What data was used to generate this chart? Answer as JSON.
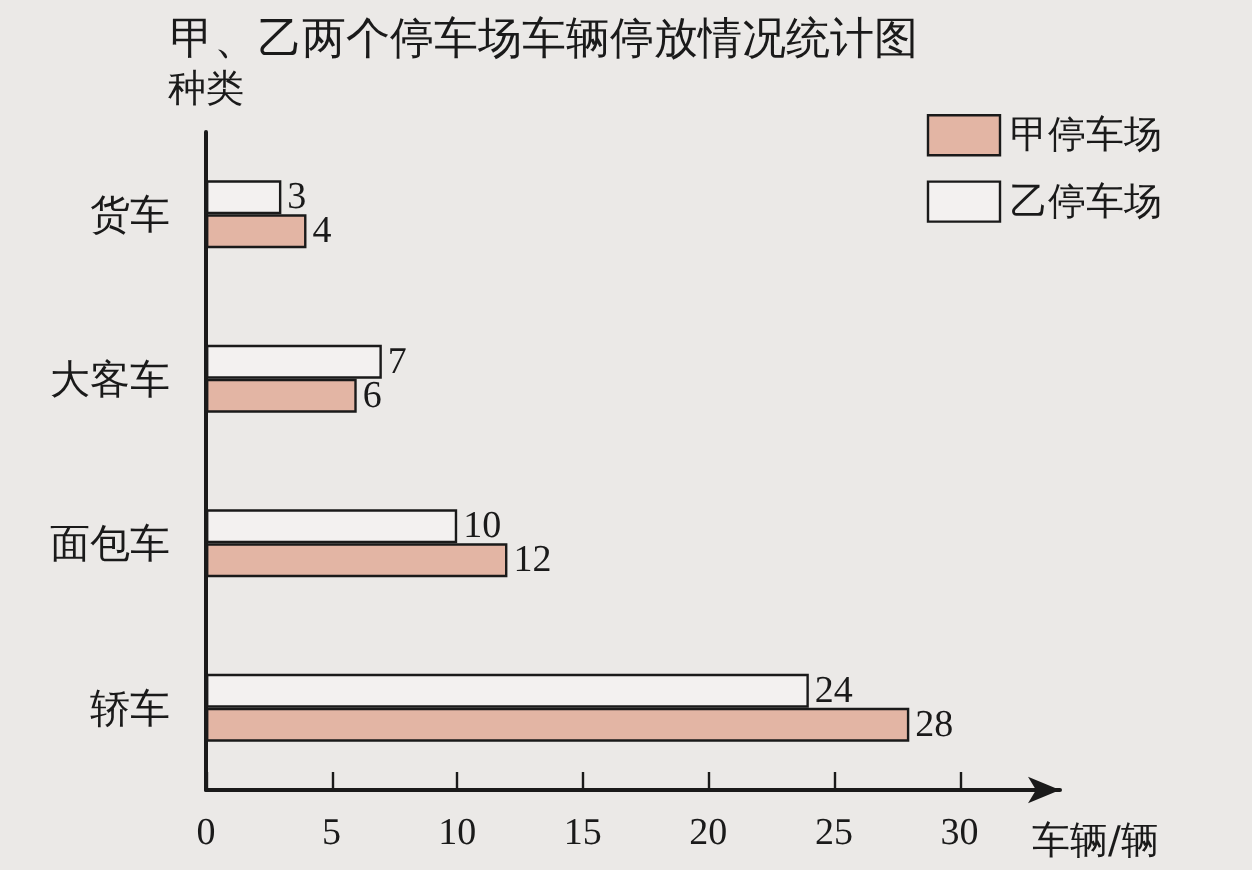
{
  "chart_data": {
    "type": "bar",
    "orientation": "horizontal",
    "title": "甲、乙两个停车场车辆停放情况统计图",
    "xlabel": "车辆/辆",
    "ylabel": "种类",
    "categories": [
      "货车",
      "大客车",
      "面包车",
      "轿车"
    ],
    "series": [
      {
        "name": "甲停车场",
        "color": "#e3b5a4",
        "values": [
          4,
          6,
          12,
          28
        ]
      },
      {
        "name": "乙停车场",
        "color": "#f3f1f0",
        "values": [
          3,
          7,
          10,
          24
        ]
      }
    ],
    "xlim": [
      0,
      34
    ],
    "xticks": [
      0,
      5,
      10,
      15,
      20,
      25,
      30
    ],
    "data_labels": true,
    "grid": false,
    "legend": "top right"
  }
}
